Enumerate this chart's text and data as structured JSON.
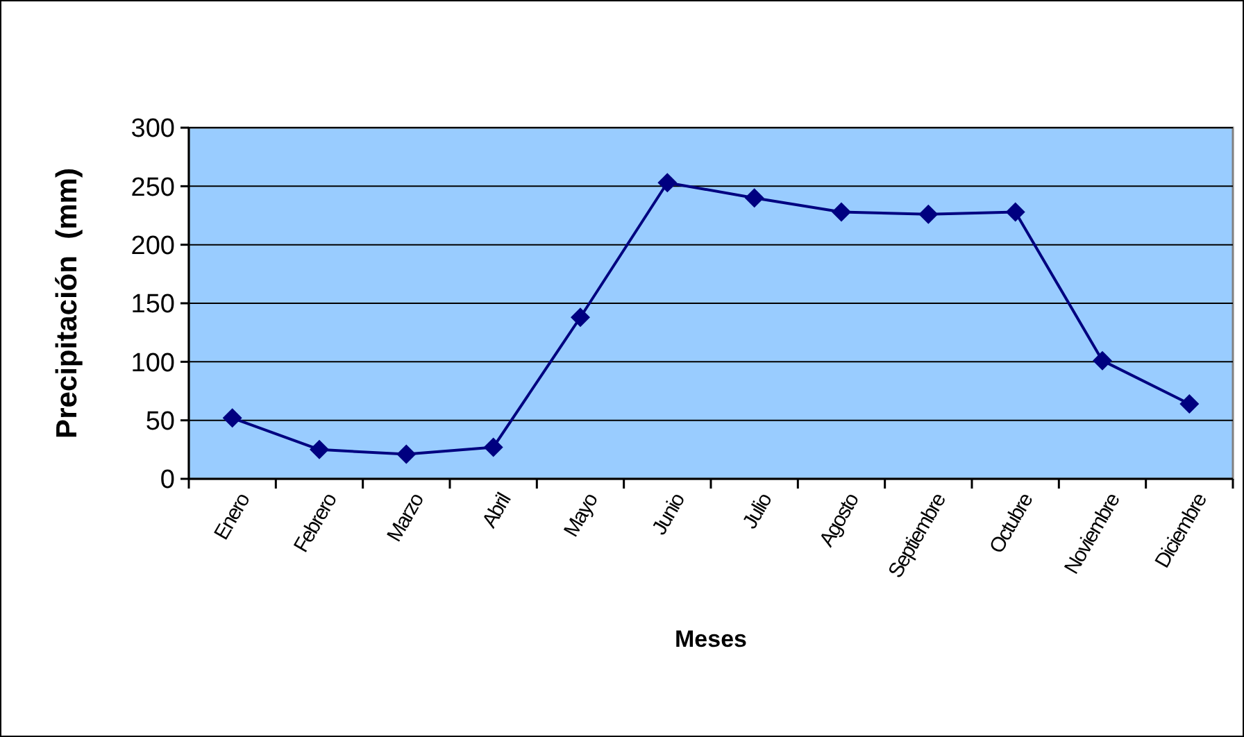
{
  "chart_data": {
    "type": "line",
    "categories": [
      "Enero",
      "Febrero",
      "Marzo",
      "Abril",
      "Mayo",
      "Junio",
      "Julio",
      "Agosto",
      "Septiembre",
      "Octubre",
      "Noviembre",
      "Diciembre"
    ],
    "series": [
      {
        "color": "#000080",
        "values": [
          52,
          25,
          21,
          27,
          138,
          253,
          240,
          228,
          226,
          228,
          101,
          64
        ]
      }
    ],
    "xlabel": "Meses",
    "ylabel": "Precipitación  (mm)",
    "ylim": [
      0,
      300
    ],
    "yticks": [
      0,
      50,
      100,
      150,
      200,
      250,
      300
    ],
    "grid": "y",
    "marker": "diamond",
    "line_style": "solid"
  }
}
